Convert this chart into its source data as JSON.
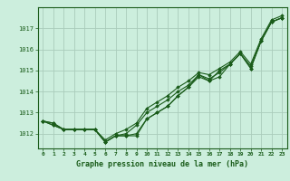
{
  "title": "Graphe pression niveau de la mer (hPa)",
  "bg_color": "#cceedd",
  "grid_color": "#aaccbb",
  "line_color": "#1a5c1a",
  "marker_color": "#1a5c1a",
  "xlim": [
    -0.5,
    23.5
  ],
  "ylim": [
    1011.3,
    1018.0
  ],
  "xticks": [
    0,
    1,
    2,
    3,
    4,
    5,
    6,
    7,
    8,
    9,
    10,
    11,
    12,
    13,
    14,
    15,
    16,
    17,
    18,
    19,
    20,
    21,
    22,
    23
  ],
  "yticks": [
    1012,
    1013,
    1014,
    1015,
    1016,
    1017
  ],
  "series": [
    [
      1012.6,
      1012.5,
      1012.2,
      1012.2,
      1012.2,
      1012.2,
      1011.6,
      1011.9,
      1011.9,
      1011.9,
      1012.7,
      1013.0,
      1013.3,
      1013.8,
      1014.2,
      1014.7,
      1014.5,
      1014.7,
      1015.3,
      1015.8,
      1015.1,
      1016.4,
      1017.3,
      1017.5
    ],
    [
      1012.6,
      1012.4,
      1012.2,
      1012.2,
      1012.2,
      1012.2,
      1011.6,
      1011.9,
      1012.0,
      1012.4,
      1013.0,
      1013.3,
      1013.6,
      1014.0,
      1014.3,
      1014.8,
      1014.5,
      1015.0,
      1015.3,
      1015.8,
      1015.2,
      1016.4,
      1017.3,
      1017.5
    ],
    [
      1012.6,
      1012.4,
      1012.2,
      1012.2,
      1012.2,
      1012.2,
      1011.7,
      1012.0,
      1012.2,
      1012.5,
      1013.2,
      1013.5,
      1013.8,
      1014.2,
      1014.5,
      1014.9,
      1014.8,
      1015.1,
      1015.4,
      1015.9,
      1015.3,
      1016.5,
      1017.4,
      1017.6
    ],
    [
      1012.6,
      1012.5,
      1012.2,
      1012.2,
      1012.2,
      1012.2,
      1011.6,
      1011.9,
      1011.9,
      1012.0,
      1012.7,
      1013.0,
      1013.3,
      1013.8,
      1014.2,
      1014.8,
      1014.6,
      1014.9,
      1015.3,
      1015.8,
      1015.1,
      1016.4,
      1017.3,
      1017.5
    ]
  ]
}
